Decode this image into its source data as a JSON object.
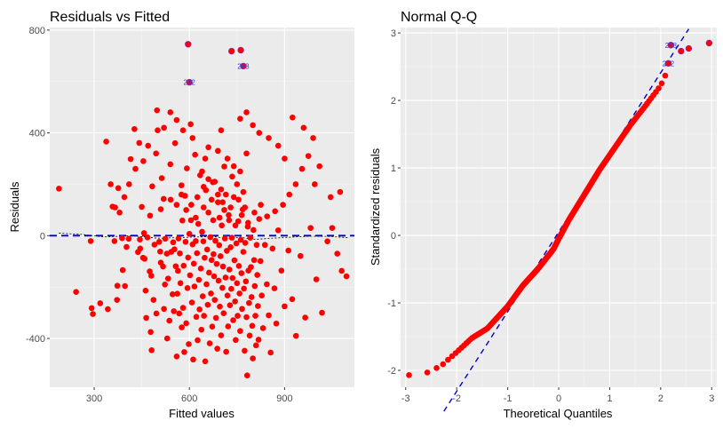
{
  "chart_data": [
    {
      "type": "scatter",
      "title": "Residuals vs Fitted",
      "xlabel": "Fitted values",
      "ylabel": "Residuals",
      "xlim": [
        160,
        1120
      ],
      "ylim": [
        -590,
        810
      ],
      "xticks": [
        300,
        600,
        900
      ],
      "yticks": [
        -400,
        0,
        400,
        800
      ],
      "xtick_labels": [
        "300",
        "600",
        "900"
      ],
      "ytick_labels": [
        "-400",
        "0",
        "400",
        "800"
      ],
      "grid": true,
      "point_color": "#ff0000",
      "reference_line": {
        "y": 0,
        "color": "#0000cc",
        "style": "dashed"
      },
      "smoother_color": "#000000",
      "labeled_points": [
        {
          "x": 596,
          "y": 745
        },
        {
          "x": 733,
          "y": 718
        },
        {
          "x": 762,
          "y": 722
        },
        {
          "x": 770,
          "y": 660,
          "label": "258"
        },
        {
          "x": 600,
          "y": 597,
          "label": "282"
        }
      ],
      "points": [
        [
          189,
          183
        ],
        [
          243,
          -219
        ],
        [
          289,
          -21
        ],
        [
          292,
          -282
        ],
        [
          296,
          -305
        ],
        [
          319,
          -263
        ],
        [
          338,
          366
        ],
        [
          343,
          -286
        ],
        [
          352,
          200
        ],
        [
          358,
          113
        ],
        [
          364,
          -21
        ],
        [
          366,
          110
        ],
        [
          372,
          -250
        ],
        [
          373,
          -195
        ],
        [
          376,
          185
        ],
        [
          388,
          -10
        ],
        [
          390,
          -134
        ],
        [
          397,
          -196
        ],
        [
          402,
          -44
        ],
        [
          409,
          -12
        ],
        [
          415,
          298
        ],
        [
          427,
          415
        ],
        [
          438,
          -64
        ],
        [
          442,
          361
        ],
        [
          444,
          -15
        ],
        [
          445,
          -50
        ],
        [
          450,
          112
        ],
        [
          454,
          -86
        ],
        [
          457,
          10
        ],
        [
          459,
          -90
        ],
        [
          462,
          -214
        ],
        [
          464,
          -320
        ],
        [
          468,
          -7
        ],
        [
          475,
          -139
        ],
        [
          476,
          78
        ],
        [
          478,
          -375
        ],
        [
          480,
          -156
        ],
        [
          481,
          -446
        ],
        [
          483,
          192
        ],
        [
          487,
          -250
        ],
        [
          490,
          -35
        ],
        [
          495,
          320
        ],
        [
          496,
          -303
        ],
        [
          498,
          488
        ],
        [
          505,
          -24
        ],
        [
          508,
          -62
        ],
        [
          510,
          -105
        ],
        [
          510,
          103
        ],
        [
          513,
          224
        ],
        [
          517,
          -120
        ],
        [
          519,
          143
        ],
        [
          520,
          -285
        ],
        [
          523,
          -190
        ],
        [
          524,
          -12
        ],
        [
          529,
          -70
        ],
        [
          530,
          -400
        ],
        [
          533,
          -167
        ],
        [
          537,
          -331
        ],
        [
          540,
          278
        ],
        [
          541,
          140
        ],
        [
          543,
          -63
        ],
        [
          547,
          -228
        ],
        [
          549,
          -26
        ],
        [
          551,
          -294
        ],
        [
          553,
          -53
        ],
        [
          555,
          360
        ],
        [
          557,
          -119
        ],
        [
          560,
          -470
        ],
        [
          562,
          -226
        ],
        [
          564,
          -137
        ],
        [
          566,
          -11
        ],
        [
          568,
          -303
        ],
        [
          570,
          -69
        ],
        [
          572,
          -185
        ],
        [
          575,
          196
        ],
        [
          576,
          -357
        ],
        [
          578,
          59
        ],
        [
          580,
          -281
        ],
        [
          582,
          -117
        ],
        [
          584,
          -453
        ],
        [
          586,
          155
        ],
        [
          588,
          -24
        ],
        [
          590,
          -341
        ],
        [
          592,
          262
        ],
        [
          594,
          -204
        ],
        [
          596,
          -85
        ],
        [
          598,
          -422
        ],
        [
          600,
          7
        ],
        [
          602,
          -154
        ],
        [
          604,
          434
        ],
        [
          606,
          120
        ],
        [
          608,
          -260
        ],
        [
          610,
          -34
        ],
        [
          612,
          -482
        ],
        [
          614,
          -109
        ],
        [
          616,
          -198
        ],
        [
          618,
          315
        ],
        [
          620,
          -21
        ],
        [
          622,
          -316
        ],
        [
          624,
          -68
        ],
        [
          626,
          -407
        ],
        [
          628,
          46
        ],
        [
          630,
          -172
        ],
        [
          632,
          -287
        ],
        [
          634,
          235
        ],
        [
          636,
          -128
        ],
        [
          638,
          -366
        ],
        [
          640,
          15
        ],
        [
          642,
          -236
        ],
        [
          644,
          -22
        ],
        [
          646,
          -312
        ],
        [
          648,
          -86
        ],
        [
          650,
          -489
        ],
        [
          652,
          177
        ],
        [
          654,
          -189
        ],
        [
          656,
          -54
        ],
        [
          658,
          -269
        ],
        [
          660,
          344
        ],
        [
          662,
          -144
        ],
        [
          664,
          -419
        ],
        [
          666,
          -6
        ],
        [
          668,
          -225
        ],
        [
          670,
          -95
        ],
        [
          672,
          -354
        ],
        [
          674,
          208
        ],
        [
          676,
          -72
        ],
        [
          678,
          -158
        ],
        [
          680,
          -250
        ],
        [
          682,
          -20
        ],
        [
          684,
          -320
        ],
        [
          686,
          -110
        ],
        [
          688,
          -440
        ],
        [
          690,
          130
        ],
        [
          692,
          -175
        ],
        [
          694,
          -37
        ],
        [
          696,
          -276
        ],
        [
          698,
          -80
        ],
        [
          700,
          -388
        ],
        [
          702,
          40
        ],
        [
          704,
          -203
        ],
        [
          706,
          -120
        ],
        [
          708,
          -302
        ],
        [
          710,
          269
        ],
        [
          712,
          -11
        ],
        [
          714,
          -163
        ],
        [
          716,
          -452
        ],
        [
          718,
          -59
        ],
        [
          720,
          -233
        ],
        [
          722,
          -353
        ],
        [
          724,
          80
        ],
        [
          726,
          -132
        ],
        [
          728,
          -271
        ],
        [
          730,
          -45
        ],
        [
          732,
          -207
        ],
        [
          734,
          -8
        ],
        [
          736,
          -165
        ],
        [
          738,
          -329
        ],
        [
          740,
          150
        ],
        [
          742,
          -96
        ],
        [
          744,
          -256
        ],
        [
          746,
          -406
        ],
        [
          748,
          -30
        ],
        [
          750,
          -185
        ],
        [
          752,
          -312
        ],
        [
          754,
          56
        ],
        [
          756,
          -118
        ],
        [
          758,
          -225
        ],
        [
          760,
          -371
        ],
        [
          762,
          -16
        ],
        [
          764,
          -146
        ],
        [
          766,
          -285
        ],
        [
          768,
          102
        ],
        [
          770,
          -63
        ],
        [
          772,
          -206
        ],
        [
          774,
          -448
        ],
        [
          776,
          -28
        ],
        [
          778,
          -178
        ],
        [
          780,
          -317
        ],
        [
          782,
          -544
        ],
        [
          784,
          35
        ],
        [
          786,
          -136
        ],
        [
          788,
          -262
        ],
        [
          790,
          -389
        ],
        [
          792,
          -8
        ],
        [
          794,
          -122
        ],
        [
          796,
          -239
        ],
        [
          798,
          -351
        ],
        [
          800,
          -478
        ],
        [
          802,
          22
        ],
        [
          804,
          -95
        ],
        [
          806,
          -196
        ],
        [
          808,
          -312
        ],
        [
          810,
          -427
        ],
        [
          812,
          -36
        ],
        [
          814,
          -153
        ],
        [
          816,
          -274
        ],
        [
          818,
          -405
        ],
        [
          820,
          65
        ],
        [
          824,
          -99
        ],
        [
          828,
          -233
        ],
        [
          832,
          -360
        ],
        [
          838,
          -36
        ],
        [
          844,
          -189
        ],
        [
          850,
          -310
        ],
        [
          856,
          -455
        ],
        [
          862,
          -50
        ],
        [
          868,
          -205
        ],
        [
          874,
          -342
        ],
        [
          880,
          21
        ],
        [
          890,
          -136
        ],
        [
          900,
          -275
        ],
        [
          912,
          -58
        ],
        [
          924,
          -247
        ],
        [
          936,
          -390
        ],
        [
          950,
          -79
        ],
        [
          965,
          -319
        ],
        [
          982,
          30
        ],
        [
          1000,
          -170
        ],
        [
          1018,
          -300
        ],
        [
          1035,
          -22
        ],
        [
          1050,
          30
        ],
        [
          1066,
          -70
        ],
        [
          1080,
          -137
        ],
        [
          1095,
          -158
        ],
        [
          640,
          250
        ],
        [
          660,
          220
        ],
        [
          680,
          210
        ],
        [
          700,
          180
        ],
        [
          715,
          160
        ],
        [
          735,
          230
        ],
        [
          750,
          200
        ],
        [
          770,
          170
        ],
        [
          650,
          300
        ],
        [
          690,
          330
        ],
        [
          720,
          300
        ],
        [
          740,
          270
        ],
        [
          760,
          250
        ],
        [
          780,
          320
        ],
        [
          700,
          410
        ],
        [
          760,
          455
        ],
        [
          780,
          480
        ],
        [
          800,
          430
        ],
        [
          820,
          400
        ],
        [
          850,
          380
        ],
        [
          880,
          350
        ],
        [
          900,
          300
        ],
        [
          925,
          460
        ],
        [
          960,
          420
        ],
        [
          990,
          380
        ],
        [
          1010,
          270
        ],
        [
          1045,
          150
        ],
        [
          1075,
          170
        ],
        [
          540,
          480
        ],
        [
          560,
          450
        ],
        [
          580,
          410
        ],
        [
          610,
          380
        ],
        [
          520,
          420
        ],
        [
          500,
          410
        ],
        [
          470,
          350
        ],
        [
          455,
          290
        ],
        [
          430,
          260
        ],
        [
          410,
          200
        ],
        [
          395,
          150
        ],
        [
          380,
          90
        ],
        [
          620,
          70
        ],
        [
          645,
          110
        ],
        [
          660,
          90
        ],
        [
          675,
          60
        ],
        [
          695,
          70
        ],
        [
          710,
          100
        ],
        [
          725,
          60
        ],
        [
          745,
          40
        ],
        [
          765,
          80
        ],
        [
          785,
          50
        ],
        [
          805,
          90
        ],
        [
          825,
          120
        ],
        [
          845,
          75
        ],
        [
          870,
          95
        ],
        [
          895,
          120
        ],
        [
          915,
          160
        ],
        [
          935,
          200
        ],
        [
          955,
          260
        ],
        [
          975,
          310
        ],
        [
          995,
          200
        ],
        [
          560,
          120
        ],
        [
          575,
          160
        ],
        [
          590,
          100
        ],
        [
          605,
          60
        ],
        [
          625,
          150
        ],
        [
          645,
          190
        ],
        [
          670,
          140
        ],
        [
          690,
          160
        ],
        [
          705,
          130
        ],
        [
          730,
          110
        ],
        [
          755,
          140
        ],
        [
          775,
          110
        ]
      ]
    },
    {
      "type": "scatter",
      "title": "Normal Q-Q",
      "xlabel": "Theoretical Quantiles",
      "ylabel": "Standardized residuals",
      "xlim": [
        -3.1,
        3.1
      ],
      "ylim": [
        -2.25,
        3.08
      ],
      "xticks": [
        -3,
        -2,
        -1,
        0,
        1,
        2,
        3
      ],
      "yticks": [
        -2,
        -1,
        0,
        1,
        2,
        3
      ],
      "xtick_labels": [
        "-3",
        "-2",
        "-1",
        "0",
        "1",
        "2",
        "3"
      ],
      "ytick_labels": [
        "-2",
        "-1",
        "0",
        "1",
        "2",
        "3"
      ],
      "grid": true,
      "point_color": "#ff0000",
      "reference_line": {
        "slope": 1.18,
        "intercept": 0.05,
        "color": "#0000cc",
        "style": "dashed"
      },
      "labeled_points": [
        {
          "x": 2.15,
          "y": 2.55,
          "label": "282"
        },
        {
          "x": 2.2,
          "y": 2.82,
          "label": "258"
        },
        {
          "x": 2.4,
          "y": 2.73
        },
        {
          "x": 2.55,
          "y": 2.77
        },
        {
          "x": 2.95,
          "y": 2.85
        }
      ],
      "n_points": 300,
      "sample_quantile_anchors": [
        [
          -2.93,
          -2.07
        ],
        [
          -2.6,
          -2.04
        ],
        [
          -2.3,
          -1.93
        ],
        [
          -2.0,
          -1.73
        ],
        [
          -1.7,
          -1.52
        ],
        [
          -1.4,
          -1.38
        ],
        [
          -1.0,
          -1.05
        ],
        [
          -0.7,
          -0.74
        ],
        [
          -0.4,
          -0.49
        ],
        [
          -0.1,
          -0.2
        ],
        [
          0.0,
          -0.05
        ],
        [
          0.2,
          0.23
        ],
        [
          0.5,
          0.6
        ],
        [
          0.8,
          0.97
        ],
        [
          1.1,
          1.3
        ],
        [
          1.4,
          1.63
        ],
        [
          1.7,
          1.92
        ],
        [
          2.0,
          2.22
        ],
        [
          2.2,
          2.55
        ],
        [
          2.4,
          2.73
        ],
        [
          2.55,
          2.77
        ],
        [
          2.93,
          2.85
        ]
      ]
    }
  ]
}
